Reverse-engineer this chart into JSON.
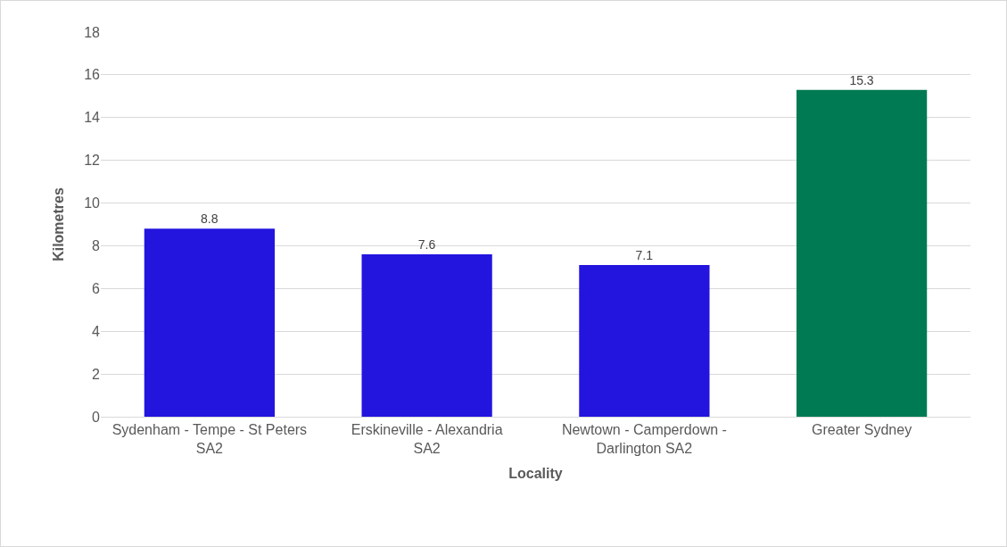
{
  "chart_data": {
    "type": "bar",
    "xlabel": "Locality",
    "ylabel": "Kilometres",
    "categories": [
      "Sydenham - Tempe - St Peters SA2",
      "Erskineville - Alexandria SA2",
      "Newtown - Camperdown - Darlington SA2",
      "Greater Sydney"
    ],
    "values": [
      8.8,
      7.6,
      7.1,
      15.3
    ],
    "colors": [
      "#2314de",
      "#2314de",
      "#2314de",
      "#007a53"
    ],
    "ylim": [
      0,
      18
    ],
    "yticks": [
      0,
      2,
      4,
      6,
      8,
      10,
      12,
      14,
      16,
      18
    ],
    "grid": "y",
    "data_labels": true
  }
}
